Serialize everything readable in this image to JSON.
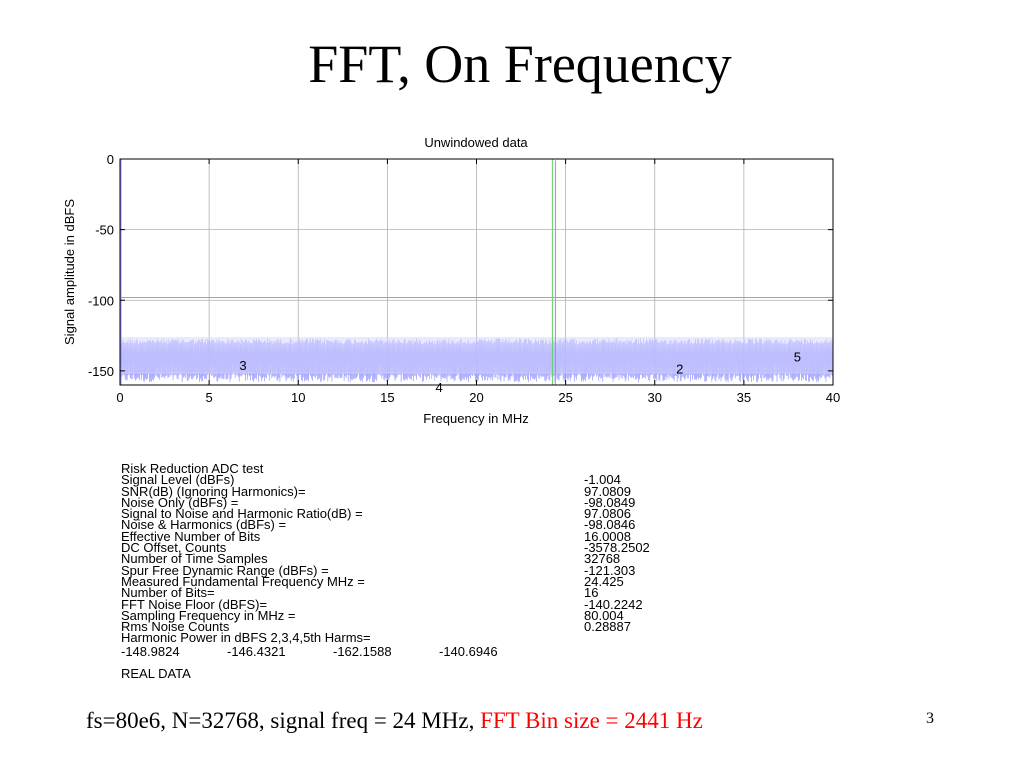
{
  "slide": {
    "title": "FFT, On Frequency",
    "page_number": "3",
    "caption_black": "fs=80e6, N=32768, signal freq = 24 MHz,",
    "caption_red": "FFT Bin size = 2441 Hz",
    "caption_red_color": "#ff0000"
  },
  "chart_data": {
    "type": "line",
    "title": "Unwindowed data",
    "xlabel": "Frequency in MHz",
    "ylabel": "Signal amplitude in dBFS",
    "xlim": [
      0,
      40
    ],
    "ylim": [
      -160,
      0
    ],
    "x_ticks": [
      0,
      5,
      10,
      15,
      20,
      25,
      30,
      35,
      40
    ],
    "y_ticks": [
      0,
      -50,
      -100,
      -150
    ],
    "x_tick_labels": [
      "0",
      "5",
      "10",
      "15",
      "20",
      "25",
      "30",
      "35",
      "40"
    ],
    "y_tick_labels": [
      "0",
      "-50",
      "-100",
      "-150"
    ],
    "grid": true,
    "series": [
      {
        "role": "spectrum",
        "color": "#8c8cff",
        "noise_floor_top_dbfs": -127,
        "noise_floor_bottom_dbfs": -158,
        "fundamental": {
          "x": 24.425,
          "y": -1.004
        }
      },
      {
        "role": "reference-level",
        "color": "#66cc66",
        "y": -98.08
      },
      {
        "role": "fundamental-marker",
        "color": "#66cc66",
        "x": 24.425
      }
    ],
    "annotations": [
      {
        "text": "2",
        "x": 31.4,
        "y": -149.0
      },
      {
        "text": "3",
        "x": 6.9,
        "y": -146.4
      },
      {
        "text": "4",
        "x": 17.9,
        "y": -162.2
      },
      {
        "text": "5",
        "x": 38.0,
        "y": -140.7
      }
    ]
  },
  "stats": {
    "heading": "Risk Reduction ADC test",
    "rows": [
      {
        "label": "Signal Level (dBFs)",
        "value": "-1.004"
      },
      {
        "label": "SNR(dB) (Ignoring Harmonics)=",
        "value": "97.0809"
      },
      {
        "label": "Noise Only (dBFs) =",
        "value": "-98.0849"
      },
      {
        "label": "Signal to Noise and Harmonic Ratio(dB) =",
        "value": "97.0806"
      },
      {
        "label": "Noise & Harmonics (dBFs) =",
        "value": "-98.0846"
      },
      {
        "label": "Effective Number of Bits",
        "value": "16.0008"
      },
      {
        "label": "DC Offset, Counts",
        "value": "-3578.2502"
      },
      {
        "label": "Number of Time Samples",
        "value": "32768"
      },
      {
        "label": "Spur Free Dynamic Range (dBFs) =",
        "value": "-121.303"
      },
      {
        "label": "Measured Fundamental Frequency MHz =",
        "value": "24.425"
      },
      {
        "label": "Number of Bits=",
        "value": "16"
      },
      {
        "label": "FFT Noise Floor (dBFS)=",
        "value": "-140.2242"
      },
      {
        "label": "Sampling Frequency in MHz =",
        "value": "80.004"
      },
      {
        "label": "Rms Noise Counts",
        "value": "0.28887"
      }
    ],
    "harmonic_heading": "Harmonic Power in dBFS 2,3,4,5th Harms=",
    "harmonic_values": [
      "-148.9824",
      "-146.4321",
      "-162.1588",
      "-140.6946"
    ],
    "footer": "REAL DATA"
  }
}
